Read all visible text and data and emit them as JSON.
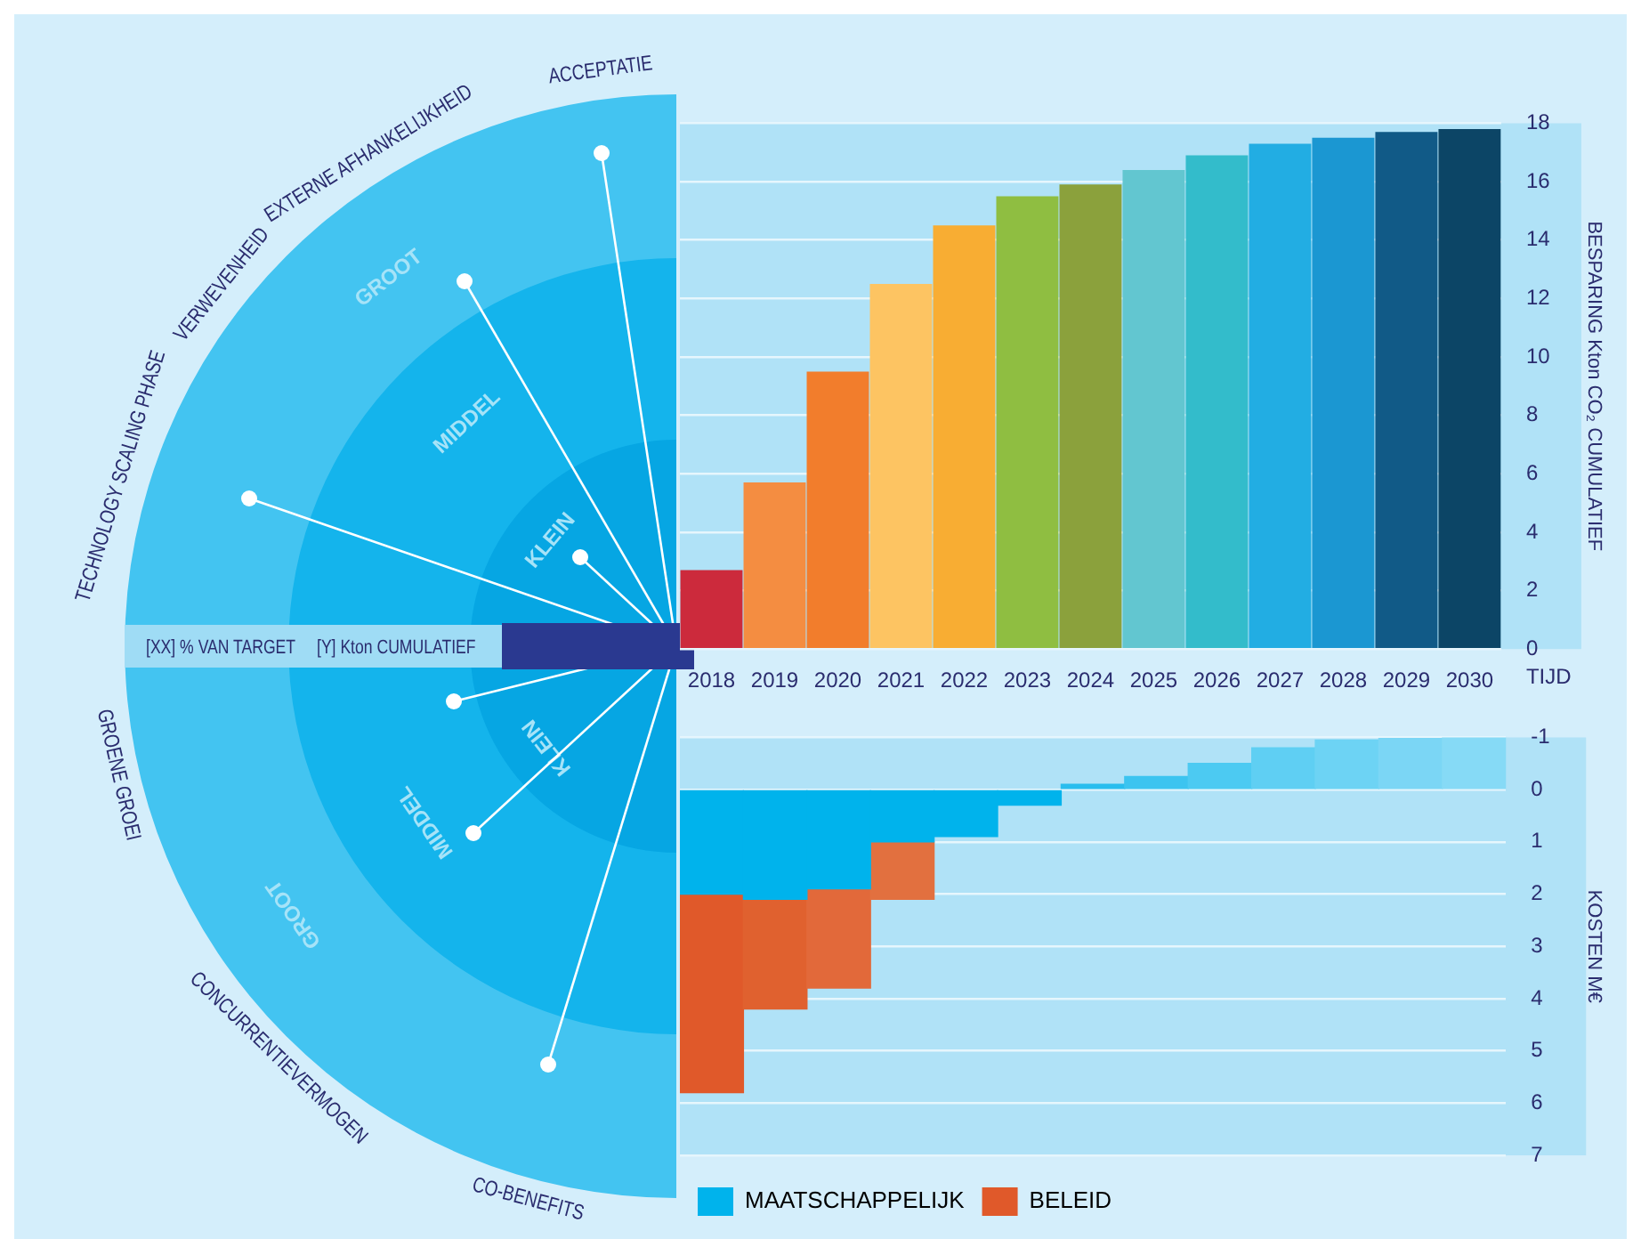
{
  "chart_data": [
    {
      "type": "other",
      "categories": [
        "ACCEPTATIE",
        "EXTERNE AFHANKELIJKHEID",
        "VERWEVENHEID",
        "TECHNOLOGY SCALING PHASE",
        "GROENE GROEI",
        "CONCURRENTIEVERMOGEN",
        "CO-BENEFITS"
      ],
      "annotations": [
        "KLEIN",
        "MIDDEL",
        "GROOT",
        "[XX] % VAN TARGET",
        "[Y] Kton CUMULATIEF"
      ]
    },
    {
      "type": "bar",
      "categories": [
        "2018",
        "2019",
        "2020",
        "2021",
        "2022",
        "2023",
        "2024",
        "2025",
        "2026",
        "2027",
        "2028",
        "2029",
        "2030"
      ],
      "values": [
        2.7,
        5.7,
        9.5,
        12.5,
        14.5,
        15.5,
        15.9,
        16.4,
        16.9,
        17.3,
        17.5,
        17.7,
        17.8
      ],
      "colors": [
        "#cc2a3c",
        "#f48d41",
        "#f27d2c",
        "#fdc462",
        "#f8ad33",
        "#8fbe41",
        "#8ba13c",
        "#62c6d0",
        "#33bccb",
        "#22ade3",
        "#1b97d2",
        "#115a87",
        "#0c4566"
      ],
      "xlabel": "TIJD",
      "ylabel": "BESPARING Kton CO₂ CUMULATIEF",
      "ylim": [
        0,
        18
      ],
      "yticks": [
        0,
        2,
        4,
        6,
        8,
        10,
        12,
        14,
        16,
        18
      ],
      "grid": "y"
    },
    {
      "type": "bar",
      "stacked": true,
      "categories": [
        null,
        null,
        null,
        null,
        null,
        null,
        null,
        null,
        null,
        null,
        null,
        null,
        null
      ],
      "series": [
        {
          "name": "MAATSCHAPPELIJK",
          "color": "#00b3ec",
          "colors": [
            "#00b3ec",
            "#00b3ec",
            "#00b3ec",
            "#00b3ec",
            "#00b3ec",
            "#00b3ec",
            "#29bdee",
            "#3cc4f0",
            "#4ccaf2",
            "#5fcff3",
            "#6dd3f4",
            "#7bd6f5",
            "#86daf6"
          ],
          "values": [
            2.0,
            2.1,
            1.9,
            1.0,
            0.9,
            0.3,
            -0.1,
            -0.25,
            -0.5,
            -0.8,
            -0.95,
            -0.98,
            -1.0
          ]
        },
        {
          "name": "BELEID",
          "color": "#e0592a",
          "colors": [
            "#e0592a",
            "#e0612f",
            "#e2693a",
            "#e2703f",
            null,
            null,
            null,
            null,
            null,
            null,
            null,
            null,
            null
          ],
          "values": [
            3.8,
            2.1,
            1.9,
            1.1,
            null,
            null,
            null,
            null,
            null,
            null,
            null,
            null,
            null
          ]
        }
      ],
      "ylabel": "KOSTEN M€",
      "ylim": [
        7,
        -1
      ],
      "yticks": [
        -1,
        0,
        1,
        2,
        3,
        4,
        5,
        6,
        7
      ],
      "grid": "y",
      "legend": "bottom left",
      "tick_labels": "y"
    }
  ]
}
